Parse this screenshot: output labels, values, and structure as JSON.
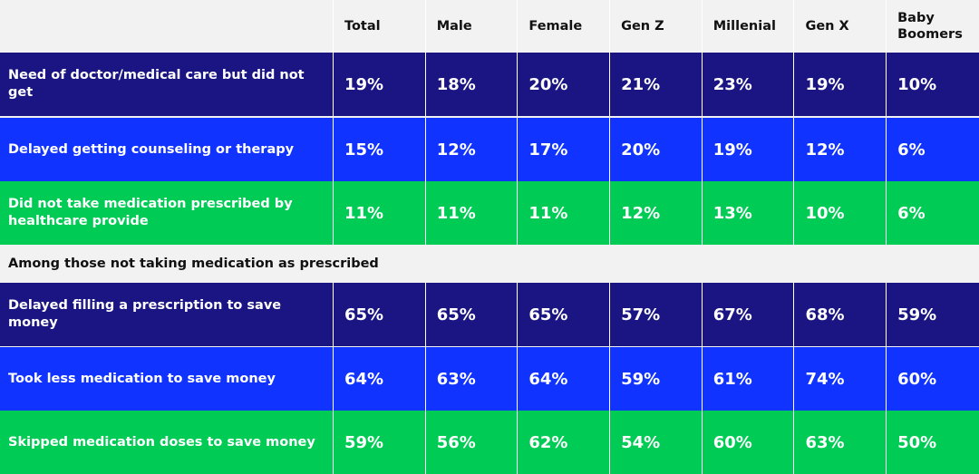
{
  "colors": {
    "dark_navy": "#1a1582",
    "blue": "#1133ff",
    "green": "#00cc55",
    "header_bg": "#f2f2f2"
  },
  "chart_data": {
    "type": "table",
    "columns": [
      "Total",
      "Male",
      "Female",
      "Gen Z",
      "Millenial",
      "Gen X",
      "Baby Boomers"
    ],
    "section_label": "Among those not taking medication as prescribed",
    "rows": [
      {
        "label": "Need of doctor/medical care but did not get",
        "color": "#1a1582",
        "values": [
          "19%",
          "18%",
          "20%",
          "21%",
          "23%",
          "19%",
          "10%"
        ]
      },
      {
        "label": "Delayed getting counseling or therapy",
        "color": "#1133ff",
        "values": [
          "15%",
          "12%",
          "17%",
          "20%",
          "19%",
          "12%",
          "6%"
        ]
      },
      {
        "label": "Did not take medication prescribed by healthcare provide",
        "color": "#00cc55",
        "values": [
          "11%",
          "11%",
          "11%",
          "12%",
          "13%",
          "10%",
          "6%"
        ]
      },
      {
        "label": "Delayed filling a prescription to save money",
        "color": "#1a1582",
        "values": [
          "65%",
          "65%",
          "65%",
          "57%",
          "67%",
          "68%",
          "59%"
        ]
      },
      {
        "label": "Took less medication to save money",
        "color": "#1133ff",
        "values": [
          "64%",
          "63%",
          "64%",
          "59%",
          "61%",
          "74%",
          "60%"
        ]
      },
      {
        "label": "Skipped medication doses to save money",
        "color": "#00cc55",
        "values": [
          "59%",
          "56%",
          "62%",
          "54%",
          "60%",
          "63%",
          "50%"
        ]
      }
    ]
  }
}
